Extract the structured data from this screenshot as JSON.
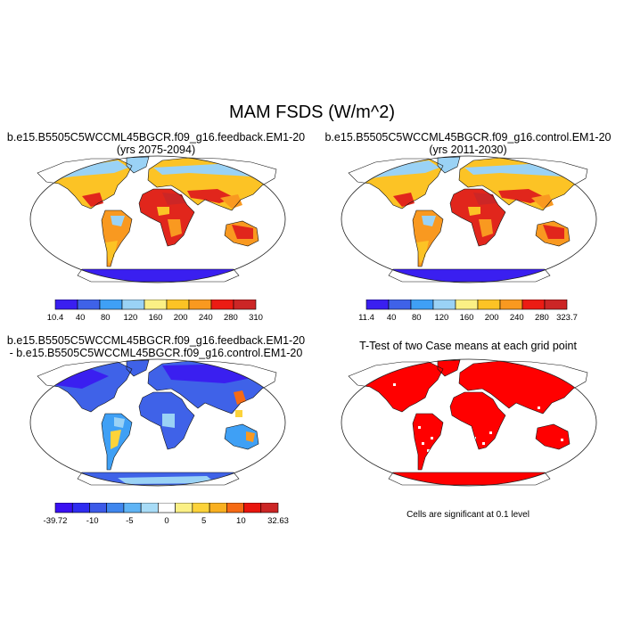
{
  "title": "MAM FSDS (W/m^2)",
  "panels": [
    {
      "id": "p1",
      "line1": "b.e15.B5505C5WCCML45BGCR.f09_g16.feedback.EM1-20",
      "line2": "(yrs 2075-2094)"
    },
    {
      "id": "p2",
      "line1": "b.e15.B5505C5WCCML45BGCR.f09_g16.control.EM1-20",
      "line2": "(yrs 2011-2030)"
    },
    {
      "id": "p3",
      "line1": "b.e15.B5505C5WCCML45BGCR.f09_g16.feedback.EM1-20",
      "line2": "- b.e15.B5505C5WCCML45BGCR.f09_g16.control.EM1-20"
    },
    {
      "id": "p4",
      "line1": "T-Test of two Case means at each grid point",
      "line2": ""
    }
  ],
  "significance_note": "Cells are significant at 0.1 level",
  "colorbars": {
    "cb1": {
      "labels": [
        "10.4",
        "40",
        "80",
        "120",
        "160",
        "200",
        "240",
        "280",
        "310"
      ],
      "colors": [
        "#3a1ff0",
        "#3f62e8",
        "#3fa0f5",
        "#9ad2f5",
        "#fbf085",
        "#fcc325",
        "#f99920",
        "#ec1c14",
        "#cc2626"
      ]
    },
    "cb2": {
      "labels": [
        "11.4",
        "40",
        "80",
        "120",
        "160",
        "200",
        "240",
        "280",
        "323.7"
      ],
      "colors": [
        "#3a1ff0",
        "#3f62e8",
        "#3fa0f5",
        "#9ad2f5",
        "#fbf085",
        "#fcc325",
        "#f99920",
        "#ec1c14",
        "#cc2626"
      ]
    },
    "cb3": {
      "labels": [
        "-39.72",
        "-10",
        "-5",
        "0",
        "5",
        "10",
        "32.63"
      ],
      "colors": [
        "#3a10f2",
        "#2f2cf0",
        "#3c5ae8",
        "#3f86ee",
        "#5fb4f5",
        "#a8dcf7",
        "#ffffff",
        "#fbf085",
        "#fcd33a",
        "#f9b020",
        "#f66a14",
        "#e9150d",
        "#cc2626"
      ]
    }
  },
  "colors": {
    "hot": "#e1261c",
    "warm_orange": "#f99920",
    "gold": "#fcc325",
    "yellow": "#fbf085",
    "light_blue": "#9ad2f5",
    "sky": "#3fa0f5",
    "blue": "#3f62e8",
    "deep_blue": "#3a1ff0",
    "sig_red": "#ff0000"
  }
}
